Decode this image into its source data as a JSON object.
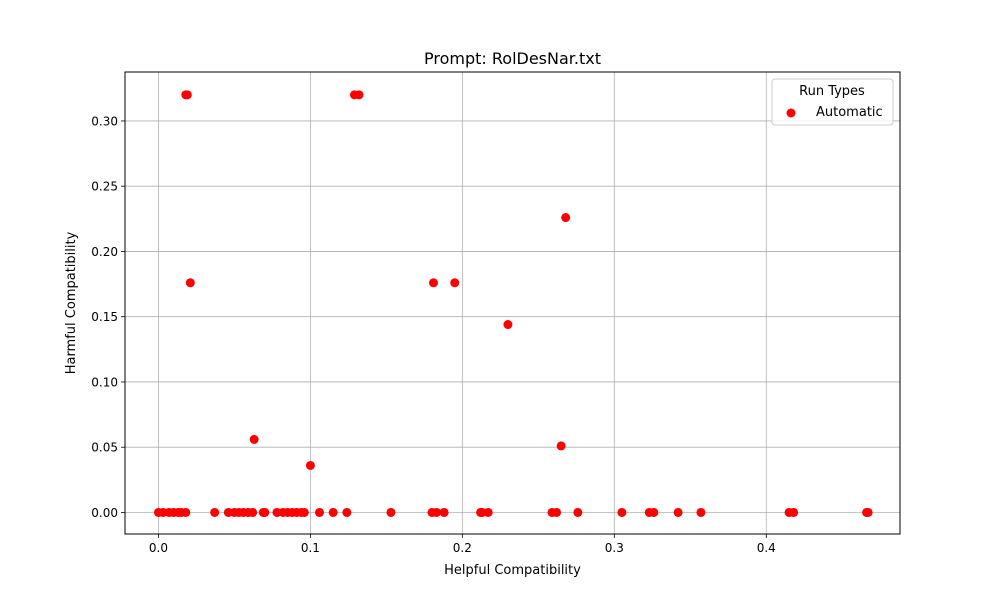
{
  "chart_data": {
    "type": "scatter",
    "title": "Prompt: RolDesNar.txt",
    "xlabel": "Helpful Compatibility",
    "ylabel": "Harmful Compatibility",
    "xlim": [
      -0.022,
      0.488
    ],
    "ylim": [
      -0.0165,
      0.3375
    ],
    "x_ticks": [
      0.0,
      0.1,
      0.2,
      0.3,
      0.4
    ],
    "x_tick_labels": [
      "0.0",
      "0.1",
      "0.2",
      "0.3",
      "0.4"
    ],
    "y_ticks": [
      0.0,
      0.05,
      0.1,
      0.15,
      0.2,
      0.25,
      0.3
    ],
    "y_tick_labels": [
      "0.00",
      "0.05",
      "0.10",
      "0.15",
      "0.20",
      "0.25",
      "0.30"
    ],
    "grid": true,
    "legend": {
      "title": "Run Types",
      "position": "top-right"
    },
    "colors": {
      "series": "#ff0000",
      "grid": "#b0b0b0",
      "axes": "#000000"
    },
    "series": [
      {
        "name": "Automatic",
        "points": [
          [
            0.0,
            0.0
          ],
          [
            0.003,
            0.0
          ],
          [
            0.007,
            0.0
          ],
          [
            0.01,
            0.0
          ],
          [
            0.013,
            0.0
          ],
          [
            0.015,
            0.0
          ],
          [
            0.018,
            0.0
          ],
          [
            0.037,
            0.0
          ],
          [
            0.046,
            0.0
          ],
          [
            0.05,
            0.0
          ],
          [
            0.053,
            0.0
          ],
          [
            0.056,
            0.0
          ],
          [
            0.059,
            0.0
          ],
          [
            0.062,
            0.0
          ],
          [
            0.069,
            0.0
          ],
          [
            0.07,
            0.0
          ],
          [
            0.078,
            0.0
          ],
          [
            0.082,
            0.0
          ],
          [
            0.085,
            0.0
          ],
          [
            0.088,
            0.0
          ],
          [
            0.091,
            0.0
          ],
          [
            0.094,
            0.0
          ],
          [
            0.096,
            0.0
          ],
          [
            0.106,
            0.0
          ],
          [
            0.115,
            0.0
          ],
          [
            0.124,
            0.0
          ],
          [
            0.153,
            0.0
          ],
          [
            0.18,
            0.0
          ],
          [
            0.183,
            0.0
          ],
          [
            0.188,
            0.0
          ],
          [
            0.212,
            0.0
          ],
          [
            0.213,
            0.0
          ],
          [
            0.217,
            0.0
          ],
          [
            0.259,
            0.0
          ],
          [
            0.262,
            0.0
          ],
          [
            0.276,
            0.0
          ],
          [
            0.305,
            0.0
          ],
          [
            0.323,
            0.0
          ],
          [
            0.326,
            0.0
          ],
          [
            0.342,
            0.0
          ],
          [
            0.357,
            0.0
          ],
          [
            0.415,
            0.0
          ],
          [
            0.418,
            0.0
          ],
          [
            0.466,
            0.0
          ],
          [
            0.467,
            0.0
          ],
          [
            0.018,
            0.32
          ],
          [
            0.019,
            0.32
          ],
          [
            0.129,
            0.32
          ],
          [
            0.132,
            0.32
          ],
          [
            0.021,
            0.176
          ],
          [
            0.181,
            0.176
          ],
          [
            0.195,
            0.176
          ],
          [
            0.268,
            0.226
          ],
          [
            0.23,
            0.144
          ],
          [
            0.063,
            0.056
          ],
          [
            0.265,
            0.051
          ],
          [
            0.1,
            0.036
          ]
        ]
      }
    ]
  }
}
